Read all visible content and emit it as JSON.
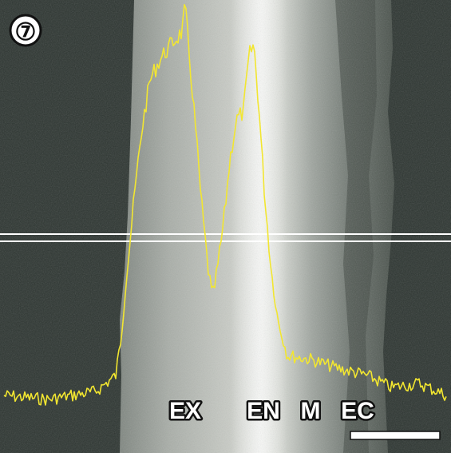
{
  "panel": {
    "number_label": "⑦",
    "region_labels": [
      "EX",
      "EN",
      "M",
      "EC"
    ],
    "colors": {
      "background": "#2c3430",
      "trace": "#f2e630",
      "guide_line": "#ffffff",
      "label_fill": "#ffffff",
      "label_outline": "#111111"
    },
    "elements": [
      "scan-line",
      "intensity-profile-trace",
      "scale-bar"
    ]
  }
}
